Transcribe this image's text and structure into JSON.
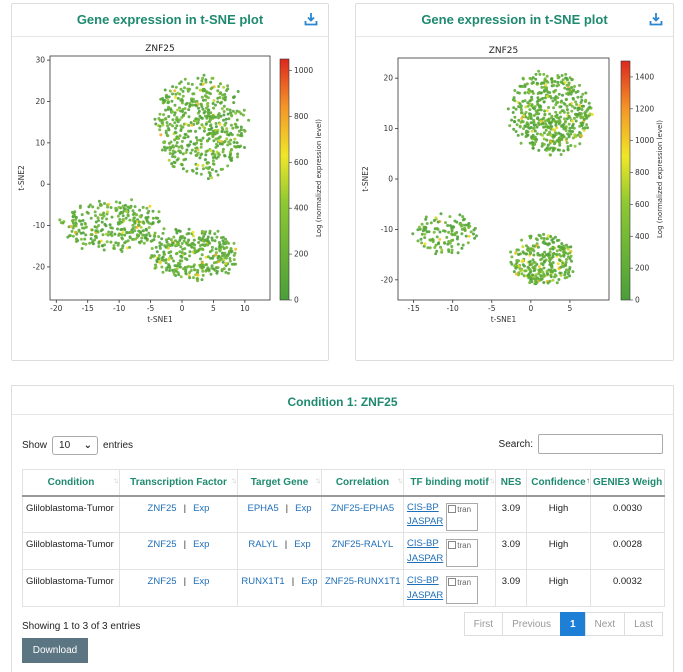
{
  "panels": [
    {
      "title": "Gene expression in t-SNE plot",
      "chart_data": {
        "type": "scatter",
        "title": "ZNF25",
        "xlabel": "t-SNE1",
        "ylabel": "t-SNE2",
        "xlim": [
          -21,
          14
        ],
        "ylim": [
          -28,
          31
        ],
        "xticks": [
          -20,
          -15,
          -10,
          -5,
          0,
          5,
          10
        ],
        "yticks": [
          -20,
          -10,
          0,
          10,
          20,
          30
        ],
        "colorbar": {
          "label": "Log (normalized expression level)",
          "min": 0,
          "max": 1050,
          "ticks": [
            0,
            200,
            400,
            600,
            800,
            1000
          ]
        },
        "clusters": [
          {
            "cx": 3,
            "cy": 14,
            "rx": 7,
            "ry": 12,
            "n": 520
          },
          {
            "cx": -11,
            "cy": -10,
            "rx": 8,
            "ry": 6,
            "n": 300
          },
          {
            "cx": 2,
            "cy": -17,
            "rx": 7,
            "ry": 6,
            "n": 330
          }
        ]
      }
    },
    {
      "title": "Gene expression in t-SNE plot",
      "chart_data": {
        "type": "scatter",
        "title": "ZNF25",
        "xlabel": "t-SNE1",
        "ylabel": "t-SNE2",
        "xlim": [
          -17,
          10
        ],
        "ylim": [
          -24,
          24
        ],
        "xticks": [
          -15,
          -10,
          -5,
          0,
          5
        ],
        "yticks": [
          -20,
          -10,
          0,
          10,
          20
        ],
        "colorbar": {
          "label": "Log (normalized expression level)",
          "min": 0,
          "max": 1500,
          "ticks": [
            0,
            200,
            400,
            600,
            800,
            1000,
            1200,
            1400
          ]
        },
        "clusters": [
          {
            "cx": 2.5,
            "cy": 13,
            "rx": 5,
            "ry": 8,
            "n": 520
          },
          {
            "cx": -11,
            "cy": -11,
            "rx": 4,
            "ry": 4,
            "n": 120
          },
          {
            "cx": 1.5,
            "cy": -16,
            "rx": 4,
            "ry": 5,
            "n": 300
          }
        ]
      }
    }
  ],
  "condition": {
    "title": "Condition 1: ZNF25",
    "show_label": "Show",
    "entries_label": "entries",
    "page_size": "10",
    "search_label": "Search:",
    "search_value": "",
    "columns": [
      "Condition",
      "Transcription Factor",
      "Target Gene",
      "Correlation",
      "TF binding motif",
      "NES",
      "Confidence",
      "GENIE3 Weigh"
    ],
    "rows": [
      {
        "condition": "Gliloblastoma-Tumor",
        "tf": "ZNF25",
        "tf_exp": "Exp",
        "target": "EPHA5",
        "target_exp": "Exp",
        "correlation": "ZNF25-EPHA5",
        "motif1": "CIS-BP",
        "motif2": "JASPAR",
        "img_alt": "tran",
        "nes": "3.09",
        "confidence": "High",
        "weight": "0.0030"
      },
      {
        "condition": "Gliloblastoma-Tumor",
        "tf": "ZNF25",
        "tf_exp": "Exp",
        "target": "RALYL",
        "target_exp": "Exp",
        "correlation": "ZNF25-RALYL",
        "motif1": "CIS-BP",
        "motif2": "JASPAR",
        "img_alt": "tran",
        "nes": "3.09",
        "confidence": "High",
        "weight": "0.0028"
      },
      {
        "condition": "Gliloblastoma-Tumor",
        "tf": "ZNF25",
        "tf_exp": "Exp",
        "target": "RUNX1T1",
        "target_exp": "Exp",
        "correlation": "ZNF25-RUNX1T1",
        "motif1": "CIS-BP",
        "motif2": "JASPAR",
        "img_alt": "tran",
        "nes": "3.09",
        "confidence": "High",
        "weight": "0.0032"
      }
    ],
    "info": "Showing 1 to 3 of 3 entries",
    "pagination": {
      "first": "First",
      "previous": "Previous",
      "current": "1",
      "next": "Next",
      "last": "Last"
    },
    "download_label": "Download"
  },
  "colors": {
    "accent": "#1f8a70",
    "link": "#1f6fb8",
    "page_active": "#1d7fd6",
    "button": "#5c7583"
  }
}
